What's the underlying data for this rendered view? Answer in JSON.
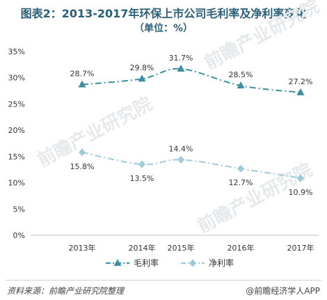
{
  "title": "图表2：2013-2017年环保上市公司毛利率及净利率变化",
  "subtitle": "（单位：%）",
  "watermark": "前瞻产业研究院",
  "footer": {
    "source": "资料来源：前瞻产业研究院整理",
    "brand": "@前瞻经济学人APP"
  },
  "chart_data": {
    "type": "line",
    "title": "图表2：2013-2017年环保上市公司毛利率及净利率变化",
    "unit": "（单位：%）",
    "categories": [
      "2013年",
      "2014年",
      "2015年",
      "2016年",
      "2017年"
    ],
    "ylim": [
      0,
      35
    ],
    "yticks": [
      "0%",
      "5%",
      "10%",
      "15%",
      "20%",
      "25%",
      "30%",
      "35%"
    ],
    "ytick_values": [
      0,
      5,
      10,
      15,
      20,
      25,
      30,
      35
    ],
    "grid": false,
    "legend_position": "bottom",
    "series": [
      {
        "name": "毛利率",
        "values": [
          28.7,
          29.8,
          31.7,
          28.5,
          27.2
        ],
        "labels": [
          "28.7%",
          "29.8%",
          "31.7%",
          "28.5%",
          "27.2%"
        ],
        "color": "#3a8fa3",
        "marker": "triangle"
      },
      {
        "name": "净利率",
        "values": [
          15.8,
          13.5,
          14.4,
          12.7,
          10.9
        ],
        "labels": [
          "15.8%",
          "13.5%",
          "14.4%",
          "12.7%",
          "10.9%"
        ],
        "color": "#9ccbd8",
        "marker": "diamond"
      }
    ]
  }
}
